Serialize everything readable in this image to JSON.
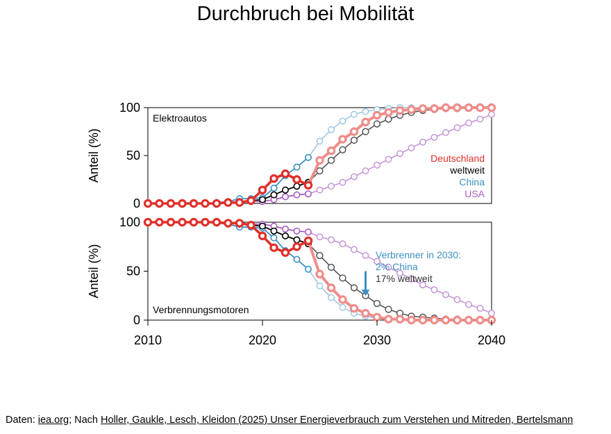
{
  "title": "Durchbruch bei Mobilität",
  "footer": {
    "prefix": "Daten: ",
    "link1": "iea.org",
    "middle": "; Nach ",
    "link2": "Holler, Gaukle, Lesch, Kleidon (2025) Unser Energieverbrauch zum Verstehen und Mitreden, Bertelsmann"
  },
  "colors": {
    "Deutschland": "#e0302a",
    "weltweit": "#555555",
    "China": "#3b8fc4",
    "USA": "#a85cc1"
  },
  "chart_data": [
    {
      "type": "line",
      "panel_label": "Elektroautos",
      "ylabel": "Anteil (%)",
      "xlim": [
        2010,
        2040
      ],
      "ylim": [
        0,
        100
      ],
      "yticks": [
        0,
        50,
        100
      ],
      "grid": false,
      "legend_position": "right",
      "historical": [
        {
          "name": "Deutschland",
          "x": [
            2010,
            2011,
            2012,
            2013,
            2014,
            2015,
            2016,
            2017,
            2018,
            2019,
            2020,
            2021,
            2022,
            2023,
            2024
          ],
          "y": [
            0,
            0,
            0,
            0,
            0,
            0,
            0,
            1,
            1,
            3,
            14,
            26,
            31,
            25,
            19
          ]
        },
        {
          "name": "weltweit",
          "x": [
            2010,
            2011,
            2012,
            2013,
            2014,
            2015,
            2016,
            2017,
            2018,
            2019,
            2020,
            2021,
            2022,
            2023,
            2024
          ],
          "y": [
            0,
            0,
            0,
            0,
            0,
            0,
            0,
            1,
            2,
            3,
            4,
            9,
            14,
            18,
            22
          ]
        },
        {
          "name": "China",
          "x": [
            2010,
            2011,
            2012,
            2013,
            2014,
            2015,
            2016,
            2017,
            2018,
            2019,
            2020,
            2021,
            2022,
            2023,
            2024
          ],
          "y": [
            0,
            0,
            0,
            0,
            0,
            0,
            1,
            2,
            5,
            5,
            6,
            16,
            29,
            38,
            48
          ]
        },
        {
          "name": "USA",
          "x": [
            2010,
            2011,
            2012,
            2013,
            2014,
            2015,
            2016,
            2017,
            2018,
            2019,
            2020,
            2021,
            2022,
            2023,
            2024
          ],
          "y": [
            0,
            0,
            0,
            0,
            0,
            0,
            0,
            1,
            2,
            2,
            2,
            4,
            7,
            9,
            10
          ]
        }
      ],
      "projection": [
        {
          "name": "Deutschland",
          "x": [
            2024,
            2025,
            2026,
            2027,
            2028,
            2029,
            2030,
            2031,
            2032,
            2033,
            2034,
            2035,
            2036,
            2037,
            2038,
            2039,
            2040
          ],
          "y": [
            19,
            45,
            55,
            67,
            75,
            85,
            92,
            95,
            97,
            98,
            99,
            99,
            100,
            100,
            100,
            100,
            100
          ]
        },
        {
          "name": "weltweit",
          "x": [
            2024,
            2025,
            2026,
            2027,
            2028,
            2029,
            2030,
            2031,
            2032,
            2033,
            2034,
            2035,
            2036,
            2037,
            2038,
            2039,
            2040
          ],
          "y": [
            22,
            34,
            45,
            56,
            66,
            75,
            83,
            88,
            92,
            95,
            97,
            98,
            99,
            99,
            100,
            100,
            100
          ]
        },
        {
          "name": "China",
          "x": [
            2024,
            2025,
            2026,
            2027,
            2028,
            2029,
            2030,
            2031,
            2032,
            2033,
            2034,
            2035,
            2036,
            2037,
            2038,
            2039,
            2040
          ],
          "y": [
            48,
            65,
            77,
            86,
            93,
            96,
            98,
            99,
            100,
            100,
            100,
            100,
            100,
            100,
            100,
            100,
            100
          ]
        },
        {
          "name": "USA",
          "x": [
            2024,
            2025,
            2026,
            2027,
            2028,
            2029,
            2030,
            2031,
            2032,
            2033,
            2034,
            2035,
            2036,
            2037,
            2038,
            2039,
            2040
          ],
          "y": [
            10,
            14,
            18,
            22,
            28,
            34,
            40,
            46,
            52,
            58,
            64,
            69,
            74,
            79,
            84,
            88,
            93
          ]
        }
      ]
    },
    {
      "type": "line",
      "panel_label": "Verbrennungsmotoren",
      "ylabel": "Anteil (%)",
      "xlabel": "",
      "xlim": [
        2010,
        2040
      ],
      "ylim": [
        0,
        100
      ],
      "yticks": [
        0,
        50,
        100
      ],
      "xticks": [
        2010,
        2020,
        2030,
        2040
      ],
      "grid": false,
      "historical": [
        {
          "name": "Deutschland",
          "x": [
            2010,
            2011,
            2012,
            2013,
            2014,
            2015,
            2016,
            2017,
            2018,
            2019,
            2020,
            2021,
            2022,
            2023,
            2024
          ],
          "y": [
            100,
            100,
            100,
            100,
            100,
            100,
            100,
            99,
            99,
            97,
            86,
            74,
            69,
            75,
            81
          ]
        },
        {
          "name": "weltweit",
          "x": [
            2010,
            2011,
            2012,
            2013,
            2014,
            2015,
            2016,
            2017,
            2018,
            2019,
            2020,
            2021,
            2022,
            2023,
            2024
          ],
          "y": [
            100,
            100,
            100,
            100,
            100,
            100,
            100,
            99,
            98,
            97,
            96,
            91,
            86,
            82,
            78
          ]
        },
        {
          "name": "China",
          "x": [
            2010,
            2011,
            2012,
            2013,
            2014,
            2015,
            2016,
            2017,
            2018,
            2019,
            2020,
            2021,
            2022,
            2023,
            2024
          ],
          "y": [
            100,
            100,
            100,
            100,
            100,
            100,
            99,
            98,
            95,
            95,
            94,
            84,
            71,
            62,
            52
          ]
        },
        {
          "name": "USA",
          "x": [
            2010,
            2011,
            2012,
            2013,
            2014,
            2015,
            2016,
            2017,
            2018,
            2019,
            2020,
            2021,
            2022,
            2023,
            2024
          ],
          "y": [
            100,
            100,
            100,
            100,
            100,
            100,
            100,
            99,
            98,
            98,
            98,
            96,
            93,
            91,
            90
          ]
        }
      ],
      "projection": [
        {
          "name": "Deutschland",
          "x": [
            2024,
            2025,
            2026,
            2027,
            2028,
            2029,
            2030,
            2031,
            2032,
            2033,
            2034,
            2035,
            2036,
            2037,
            2038,
            2039,
            2040
          ],
          "y": [
            81,
            47,
            33,
            21,
            12,
            7,
            3,
            1,
            1,
            0,
            0,
            0,
            0,
            0,
            0,
            0,
            0
          ]
        },
        {
          "name": "weltweit",
          "x": [
            2024,
            2025,
            2026,
            2027,
            2028,
            2029,
            2030,
            2031,
            2032,
            2033,
            2034,
            2035,
            2036,
            2037,
            2038,
            2039,
            2040
          ],
          "y": [
            78,
            66,
            54,
            43,
            33,
            25,
            17,
            11,
            7,
            4,
            3,
            2,
            1,
            1,
            0,
            0,
            0
          ]
        },
        {
          "name": "China",
          "x": [
            2024,
            2025,
            2026,
            2027,
            2028,
            2029,
            2030,
            2031,
            2032,
            2033,
            2034,
            2035,
            2036,
            2037,
            2038,
            2039,
            2040
          ],
          "y": [
            52,
            35,
            23,
            13,
            7,
            4,
            2,
            1,
            0,
            0,
            0,
            0,
            0,
            0,
            0,
            0,
            0
          ]
        },
        {
          "name": "USA",
          "x": [
            2024,
            2025,
            2026,
            2027,
            2028,
            2029,
            2030,
            2031,
            2032,
            2033,
            2034,
            2035,
            2036,
            2037,
            2038,
            2039,
            2040
          ],
          "y": [
            90,
            85,
            82,
            78,
            72,
            66,
            60,
            54,
            48,
            42,
            36,
            31,
            26,
            21,
            16,
            12,
            7
          ]
        }
      ],
      "annotation": {
        "lines": [
          "Verbrenner in 2030:",
          "2% China",
          "17% weltweit"
        ],
        "arrow_year": 2029,
        "arrow_from_value": 50,
        "arrow_to_value": 24
      }
    }
  ]
}
